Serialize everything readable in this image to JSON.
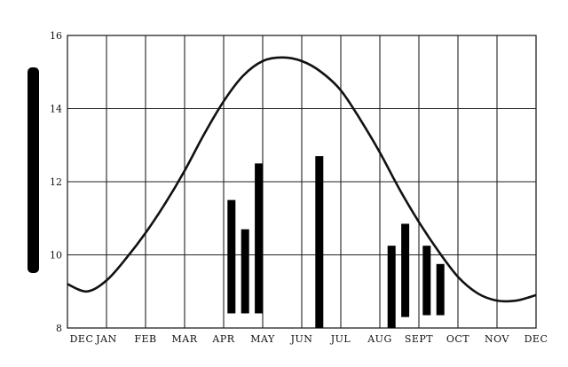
{
  "chart_data": {
    "type": "line",
    "title": "",
    "xlabel": "",
    "ylabel": "",
    "ylim": [
      8,
      16
    ],
    "y_ticks": [
      "8",
      "10",
      "12",
      "14",
      "16"
    ],
    "x_tick_labels": [
      "DEC",
      "JAN",
      "FEB",
      "MAR",
      "APR",
      "MAY",
      "JUN",
      "JUL",
      "AUG",
      "SEPT",
      "OCT",
      "NOV",
      "DEC"
    ],
    "grid": true,
    "legend": "none",
    "series": [
      {
        "kind": "line",
        "x": [
          0,
          0.5,
          1,
          1.5,
          2,
          2.5,
          3,
          3.5,
          4,
          4.5,
          5,
          5.5,
          6,
          6.5,
          7,
          7.5,
          8,
          8.5,
          9,
          9.5,
          10,
          10.5,
          11,
          11.5,
          12
        ],
        "values": [
          9.2,
          9.0,
          9.3,
          9.9,
          10.6,
          11.4,
          12.3,
          13.3,
          14.2,
          14.9,
          15.3,
          15.4,
          15.3,
          15.0,
          14.5,
          13.7,
          12.8,
          11.8,
          10.9,
          10.1,
          9.4,
          8.95,
          8.75,
          8.75,
          8.9
        ]
      },
      {
        "kind": "range-bars",
        "bars": [
          {
            "x": 4.2,
            "low": 8.4,
            "high": 11.5
          },
          {
            "x": 4.55,
            "low": 8.4,
            "high": 10.7
          },
          {
            "x": 4.9,
            "low": 8.4,
            "high": 12.5
          },
          {
            "x": 6.45,
            "low": 8.0,
            "high": 12.7
          },
          {
            "x": 8.3,
            "low": 8.0,
            "high": 10.25
          },
          {
            "x": 8.65,
            "low": 8.3,
            "high": 10.85
          },
          {
            "x": 9.2,
            "low": 8.35,
            "high": 10.25
          },
          {
            "x": 9.55,
            "low": 8.35,
            "high": 9.75
          }
        ]
      }
    ],
    "colors": {
      "line": "#111111",
      "bars": "#000000",
      "grid": "#222222"
    }
  }
}
